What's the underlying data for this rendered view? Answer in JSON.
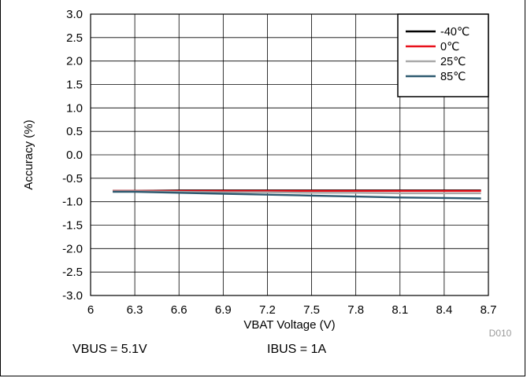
{
  "chart_data": {
    "type": "line",
    "xlabel": "VBAT Voltage (V)",
    "ylabel": "Accuracy (%)",
    "xlim": [
      6,
      8.7
    ],
    "ylim": [
      -3,
      3
    ],
    "x_ticks": [
      "6",
      "6.3",
      "6.6",
      "6.9",
      "7.2",
      "7.5",
      "7.8",
      "8.1",
      "8.4",
      "8.7"
    ],
    "y_ticks": [
      "3.0",
      "2.5",
      "2.0",
      "1.5",
      "1.0",
      "0.5",
      "0.0",
      "-0.5",
      "-1.0",
      "-1.5",
      "-2.0",
      "-2.5",
      "-3.0"
    ],
    "grid": true,
    "legend_position": "top-right",
    "series": [
      {
        "name": "-40℃",
        "color": "#000000",
        "x": [
          6.15,
          6.3,
          6.6,
          6.9,
          7.2,
          7.5,
          7.8,
          8.1,
          8.4,
          8.65
        ],
        "y": [
          -0.77,
          -0.77,
          -0.76,
          -0.76,
          -0.76,
          -0.76,
          -0.76,
          -0.76,
          -0.76,
          -0.76
        ]
      },
      {
        "name": "0℃",
        "color": "#e8101a",
        "x": [
          6.15,
          6.3,
          6.6,
          6.9,
          7.2,
          7.5,
          7.8,
          8.1,
          8.4,
          8.65
        ],
        "y": [
          -0.77,
          -0.77,
          -0.77,
          -0.77,
          -0.77,
          -0.77,
          -0.77,
          -0.77,
          -0.77,
          -0.77
        ]
      },
      {
        "name": "25℃",
        "color": "#a9a9a9",
        "x": [
          6.15,
          6.3,
          6.6,
          6.9,
          7.2,
          7.5,
          7.8,
          8.1,
          8.4,
          8.65
        ],
        "y": [
          -0.78,
          -0.78,
          -0.79,
          -0.8,
          -0.8,
          -0.81,
          -0.81,
          -0.82,
          -0.82,
          -0.82
        ]
      },
      {
        "name": "85℃",
        "color": "#2e5a70",
        "x": [
          6.15,
          6.3,
          6.6,
          6.9,
          7.2,
          7.5,
          7.8,
          8.1,
          8.4,
          8.65
        ],
        "y": [
          -0.79,
          -0.79,
          -0.81,
          -0.83,
          -0.85,
          -0.87,
          -0.89,
          -0.91,
          -0.92,
          -0.93
        ]
      }
    ],
    "annotation": "D010"
  },
  "conditions": {
    "vbus": "VBUS = 5.1V",
    "ibus": "IBUS = 1A"
  }
}
